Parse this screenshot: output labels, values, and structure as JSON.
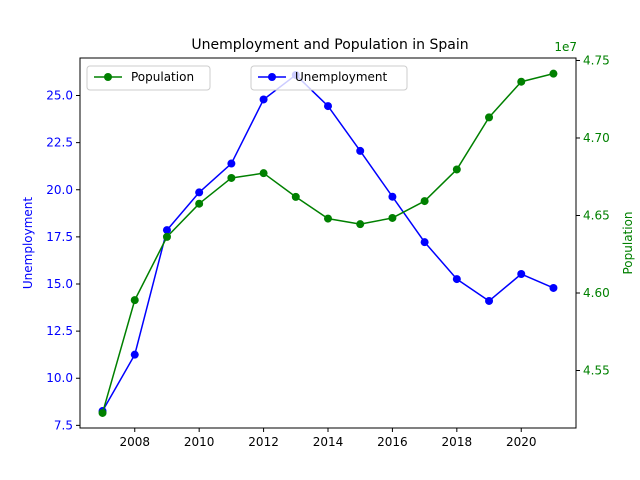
{
  "chart_data": {
    "type": "line",
    "title": "Unemployment and Population in Spain",
    "xlabel": "",
    "x": [
      2007,
      2008,
      2009,
      2010,
      2011,
      2012,
      2013,
      2014,
      2015,
      2016,
      2017,
      2018,
      2019,
      2020,
      2021
    ],
    "xlim": [
      2006.3,
      2021.7
    ],
    "x_ticks": [
      2008,
      2010,
      2012,
      2014,
      2016,
      2018,
      2020
    ],
    "x_tick_labels": [
      "2008",
      "2010",
      "2012",
      "2014",
      "2016",
      "2018",
      "2020"
    ],
    "grid": false,
    "y_left": {
      "label": "Unemployment",
      "color": "#0000ff",
      "lim": [
        7.36,
        26.99
      ],
      "ticks": [
        7.5,
        10.0,
        12.5,
        15.0,
        17.5,
        20.0,
        22.5,
        25.0
      ],
      "tick_labels": [
        "7.5",
        "10.0",
        "12.5",
        "15.0",
        "17.5",
        "20.0",
        "22.5",
        "25.0"
      ]
    },
    "y_right": {
      "label": "Population",
      "color": "#008000",
      "offset_label": "1e7",
      "scale": 10000000,
      "lim": [
        4.5129,
        4.7516
      ],
      "ticks": [
        4.55,
        4.6,
        4.65,
        4.7,
        4.75
      ],
      "tick_labels": [
        "4.55",
        "4.60",
        "4.65",
        "4.70",
        "4.75"
      ]
    },
    "series": [
      {
        "name": "Unemployment",
        "axis": "left",
        "color": "#0000ff",
        "values": [
          8.26,
          11.25,
          17.86,
          19.86,
          21.39,
          24.79,
          26.09,
          24.44,
          22.06,
          19.63,
          17.22,
          15.26,
          14.1,
          15.53,
          14.79
        ]
      },
      {
        "name": "Population",
        "axis": "right",
        "color": "#008000",
        "values": [
          4.5226,
          4.5954,
          4.6362,
          4.6576,
          4.6742,
          4.6773,
          4.662,
          4.648,
          4.6444,
          4.6484,
          4.6593,
          4.6797,
          4.7133,
          4.7363,
          4.7415
        ]
      }
    ],
    "legends": [
      {
        "placement": "upper-left",
        "entries": [
          "Population"
        ]
      },
      {
        "placement": "upper-center",
        "entries": [
          "Unemployment"
        ]
      }
    ]
  }
}
